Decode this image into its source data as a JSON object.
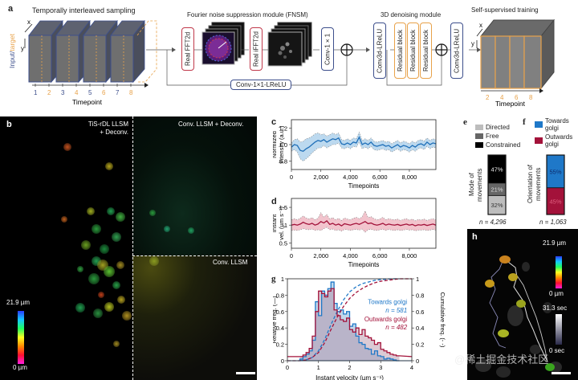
{
  "panel_a": {
    "letter": "a",
    "sampling_title": "Temporally interleaved sampling",
    "axis_x": "x",
    "axis_y": "y",
    "side_label_input": "Input/",
    "side_label_target": "target",
    "timepoints": [
      "1",
      "2",
      "3",
      "4",
      "5",
      "6",
      "7",
      "8"
    ],
    "timepoint_label": "Timepoint",
    "fnsm_title": "Fourier noise suppression module (FNSM)",
    "fft_label": "Real FFT2d",
    "ifft_label": "Real iFFT2d",
    "conv1_label": "Conv-1×1",
    "skip_label": "Conv-1×1-LReLU",
    "denoise_title": "3D denoising module",
    "conv3d_label": "Conv3d-LReLU",
    "residual_label": "Residual block",
    "ssl_title": "Self-supervised training",
    "ssl_timepoints": [
      "2",
      "4",
      "6",
      "8"
    ],
    "colors": {
      "input": "#3d4f8c",
      "target": "#e8a24a",
      "fft": "#c0394b"
    }
  },
  "panel_b": {
    "letter": "b",
    "label_left_1": "TiS-rDL LLSM",
    "label_left_2": "+ Deconv.",
    "label_tr": "Conv. LLSM + Deconv.",
    "label_br": "Conv. LLSM",
    "colorbar_max": "21.9 µm",
    "colorbar_min": "0 µm"
  },
  "panel_c": {
    "letter": "c",
    "ylabel_1": "Normlized",
    "ylabel_2": "intensity (a.u.)",
    "xlabel": "Timepoints"
  },
  "panel_d": {
    "letter": "d",
    "ylabel_1": "Instant",
    "ylabel_2": "vel. (µm s⁻¹)",
    "xlabel": "Timepoints"
  },
  "panel_e": {
    "letter": "e",
    "legend": [
      "Directed",
      "Free",
      "Constrained"
    ],
    "ylabel_1": "Mode of",
    "ylabel_2": "movements",
    "n_label": "n = 4,296"
  },
  "panel_f": {
    "letter": "f",
    "legend": [
      "Towards golgi",
      "Outwards golgi"
    ],
    "ylabel_1": "Orientation of",
    "ylabel_2": "movements",
    "n_label": "n = 1,063"
  },
  "panel_g": {
    "letter": "g",
    "ylabel_left": "Relative freq. (—)",
    "ylabel_right": "Cumulative freq. (- -)",
    "xlabel": "Instant velocity (µm s⁻¹)",
    "legend_towards": "Towards golgi",
    "legend_towards_n": "n = 581",
    "legend_outwards": "Outwards golgi",
    "legend_outwards_n": "n = 482"
  },
  "panel_h": {
    "letter": "h",
    "depth_max": "21.9 µm",
    "depth_min": "0 µm",
    "time_max": "31.3 sec",
    "time_min": "0 sec",
    "watermark": "@稀土掘金技术社区"
  },
  "chart_data": [
    {
      "id": "c",
      "type": "line",
      "title": "",
      "xlabel": "Timepoints",
      "ylabel": "Normlized intensity (a.u.)",
      "xlim": [
        0,
        9800
      ],
      "ylim": [
        0.7,
        1.3
      ],
      "xticks": [
        0,
        2000,
        4000,
        6000,
        8000
      ],
      "xtick_labels": [
        "0",
        "2,000",
        "4,000",
        "6,000",
        "8,000"
      ],
      "yticks": [
        0.8,
        1.0,
        1.2
      ],
      "ytick_labels": [
        "0.8",
        "1.0",
        "1.2"
      ],
      "series": [
        {
          "name": "mean",
          "color": "#1f6fb8",
          "band_color": "#bcd9ef",
          "x": [
            0,
            200,
            400,
            600,
            800,
            1000,
            1200,
            1400,
            1600,
            1800,
            2000,
            2200,
            2400,
            2600,
            2800,
            3000,
            3200,
            3400,
            3600,
            3800,
            4000,
            4200,
            4400,
            4600,
            4800,
            5000,
            5200,
            5400,
            5600,
            5800,
            6000,
            6200,
            6400,
            6600,
            6800,
            7000,
            7200,
            7400,
            7600,
            7800,
            8000,
            8200,
            8400,
            8600,
            8800,
            9000,
            9200,
            9400,
            9600,
            9800
          ],
          "mean": [
            0.97,
            1.0,
            0.99,
            0.93,
            0.92,
            0.95,
            0.97,
            1.0,
            1.03,
            1.05,
            1.04,
            1.06,
            1.03,
            1.05,
            1.07,
            1.06,
            1.08,
            1.01,
            1.0,
            1.02,
            1.0,
            1.03,
            1.02,
            1.09,
            1.0,
            1.02,
            1.0,
            1.03,
            0.99,
            0.98,
            0.99,
            1.0,
            0.98,
            0.99,
            0.96,
            0.98,
            1.0,
            0.97,
            0.99,
            0.98,
            0.96,
            0.99,
            0.97,
            1.0,
            1.01,
            0.99,
            1.03,
            1.0,
            1.02,
            1.01
          ],
          "band_halfwidth": [
            0.05,
            0.06,
            0.08,
            0.1,
            0.12,
            0.12,
            0.11,
            0.1,
            0.1,
            0.09,
            0.08,
            0.07,
            0.07,
            0.07,
            0.07,
            0.06,
            0.06,
            0.05,
            0.05,
            0.05,
            0.05,
            0.05,
            0.05,
            0.06,
            0.05,
            0.05,
            0.05,
            0.05,
            0.05,
            0.05,
            0.05,
            0.05,
            0.05,
            0.05,
            0.05,
            0.05,
            0.05,
            0.05,
            0.05,
            0.05,
            0.05,
            0.05,
            0.05,
            0.05,
            0.05,
            0.05,
            0.05,
            0.05,
            0.05,
            0.05
          ]
        }
      ]
    },
    {
      "id": "d",
      "type": "line",
      "title": "",
      "xlabel": "Timepoints",
      "ylabel": "Instant vel. (µm s⁻¹)",
      "xlim": [
        0,
        9800
      ],
      "ylim": [
        0.35,
        1.75
      ],
      "xticks": [
        0,
        2000,
        4000,
        6000,
        8000
      ],
      "xtick_labels": [
        "0",
        "2,000",
        "4,000",
        "6,000",
        "8,000"
      ],
      "yticks": [
        0.5,
        1.0,
        1.5
      ],
      "ytick_labels": [
        "0.5",
        "1",
        "1.5"
      ],
      "series": [
        {
          "name": "mean",
          "color": "#a3123a",
          "band_color": "#f2c4cd",
          "x": [
            0,
            200,
            400,
            600,
            800,
            1000,
            1200,
            1400,
            1600,
            1800,
            2000,
            2200,
            2400,
            2600,
            2800,
            3000,
            3200,
            3400,
            3600,
            3800,
            4000,
            4200,
            4400,
            4600,
            4800,
            5000,
            5200,
            5400,
            5600,
            5800,
            6000,
            6200,
            6400,
            6600,
            6800,
            7000,
            7200,
            7400,
            7600,
            7800,
            8000,
            8200,
            8400,
            8600,
            8800,
            9000,
            9200,
            9400,
            9600,
            9800
          ],
          "mean": [
            1.0,
            1.02,
            1.0,
            1.03,
            1.08,
            1.04,
            1.02,
            1.05,
            1.0,
            1.03,
            1.1,
            1.06,
            1.12,
            1.02,
            1.05,
            1.0,
            1.03,
            0.98,
            1.04,
            1.02,
            1.0,
            1.03,
            1.05,
            1.02,
            1.06,
            1.1,
            1.04,
            1.06,
            1.02,
            1.0,
            1.02,
            1.05,
            1.0,
            1.03,
            1.01,
            1.0,
            1.02,
            0.99,
            1.01,
            1.03,
            1.0,
            1.02,
            0.98,
            1.01,
            1.0,
            1.02,
            0.99,
            1.01,
            1.03,
            1.0
          ],
          "band_halfwidth": [
            0.15,
            0.16,
            0.15,
            0.16,
            0.18,
            0.16,
            0.15,
            0.16,
            0.15,
            0.16,
            0.25,
            0.16,
            0.18,
            0.15,
            0.16,
            0.15,
            0.16,
            0.15,
            0.16,
            0.15,
            0.15,
            0.16,
            0.17,
            0.16,
            0.17,
            0.3,
            0.17,
            0.18,
            0.16,
            0.15,
            0.15,
            0.17,
            0.15,
            0.15,
            0.15,
            0.15,
            0.15,
            0.14,
            0.15,
            0.15,
            0.14,
            0.15,
            0.14,
            0.15,
            0.14,
            0.15,
            0.14,
            0.15,
            0.15,
            0.14
          ]
        }
      ]
    },
    {
      "id": "e",
      "type": "bar",
      "stacked": true,
      "categories": [
        "Mode of movements"
      ],
      "series": [
        {
          "name": "Directed",
          "value": 32,
          "label": "32%",
          "color": "#bdbdbd"
        },
        {
          "name": "Free",
          "value": 21,
          "label": "21%",
          "color": "#666666"
        },
        {
          "name": "Constrained",
          "value": 47,
          "label": "47%",
          "color": "#000000"
        }
      ],
      "ylim": [
        0,
        100
      ],
      "n": "n = 4,296"
    },
    {
      "id": "f",
      "type": "bar",
      "stacked": true,
      "categories": [
        "Orientation of movements"
      ],
      "series": [
        {
          "name": "Outwards golgi",
          "value": 45,
          "label": "45%",
          "color": "#a3123a"
        },
        {
          "name": "Towards golgi",
          "value": 55,
          "label": "55%",
          "color": "#1f78c8"
        }
      ],
      "ylim": [
        0,
        100
      ],
      "n": "n = 1,063"
    },
    {
      "id": "g",
      "type": "line",
      "subtype": "step-histogram+cdf",
      "xlabel": "Instant velocity (µm s⁻¹)",
      "ylabel": "Relative freq. (—)",
      "ylabel_right": "Cumulative freq. (- -)",
      "xlim": [
        0,
        4
      ],
      "ylim": [
        0,
        1
      ],
      "xticks": [
        0,
        1,
        2,
        3,
        4
      ],
      "yticks": [
        0,
        0.2,
        0.4,
        0.6,
        0.8,
        1
      ],
      "ytick_labels": [
        "0",
        "0.2",
        "0.4",
        "0.6",
        "0.8",
        "1"
      ],
      "yticks_right": [
        0,
        0.2,
        0.4,
        0.6,
        0.8,
        1
      ],
      "bin_edges": [
        0.4,
        0.5,
        0.6,
        0.7,
        0.8,
        0.9,
        1.0,
        1.1,
        1.2,
        1.3,
        1.4,
        1.5,
        1.6,
        1.7,
        1.8,
        1.9,
        2.0,
        2.1,
        2.2,
        2.3,
        2.4,
        2.5,
        2.6,
        2.7,
        2.8,
        2.9,
        3.0,
        3.1,
        3.2,
        3.3,
        3.4,
        3.5,
        3.6
      ],
      "series": [
        {
          "name": "Towards golgi",
          "n": 581,
          "color": "#1f78c8",
          "hist": [
            0.02,
            0.05,
            0.08,
            0.12,
            0.25,
            0.72,
            0.55,
            0.85,
            0.8,
            0.88,
            0.96,
            0.7,
            0.6,
            0.62,
            0.57,
            0.6,
            0.42,
            0.45,
            0.3,
            0.22,
            0.2,
            0.15,
            0.14,
            0.08,
            0.12,
            0.06,
            0.05,
            0.02,
            0.03,
            0.02,
            0.01,
            0.0
          ],
          "cdf_x": [
            0.4,
            0.6,
            0.8,
            1.0,
            1.2,
            1.4,
            1.6,
            1.8,
            2.0,
            2.2,
            2.4,
            2.6,
            2.8,
            3.0,
            3.2,
            3.4,
            3.6
          ],
          "cdf": [
            0.0,
            0.01,
            0.04,
            0.12,
            0.26,
            0.44,
            0.6,
            0.74,
            0.84,
            0.9,
            0.94,
            0.96,
            0.98,
            0.99,
            0.995,
            1.0,
            1.0
          ]
        },
        {
          "name": "Outwards golgi",
          "n": 482,
          "color": "#a3123a",
          "hist": [
            0.05,
            0.07,
            0.1,
            0.15,
            0.3,
            0.6,
            0.85,
            0.82,
            0.78,
            0.85,
            0.88,
            0.62,
            0.55,
            0.5,
            0.48,
            0.52,
            0.38,
            0.35,
            0.4,
            0.32,
            0.38,
            0.3,
            0.28,
            0.25,
            0.2,
            0.22,
            0.14,
            0.12,
            0.1,
            0.08,
            0.07,
            0.06
          ],
          "cdf_x": [
            0.0,
            0.4,
            0.6,
            0.8,
            1.0,
            1.2,
            1.4,
            1.6,
            1.8,
            2.0,
            2.2,
            2.4,
            2.6,
            2.8,
            3.0,
            3.2,
            3.4,
            3.6,
            3.8,
            4.0
          ],
          "cdf": [
            0.0,
            0.0,
            0.01,
            0.04,
            0.1,
            0.22,
            0.38,
            0.53,
            0.66,
            0.76,
            0.83,
            0.88,
            0.92,
            0.95,
            0.97,
            0.98,
            0.99,
            1.0,
            1.0,
            1.0
          ]
        }
      ],
      "annotations": [
        "Towards golgi n = 581",
        "Outwards golgi n = 482"
      ]
    }
  ]
}
